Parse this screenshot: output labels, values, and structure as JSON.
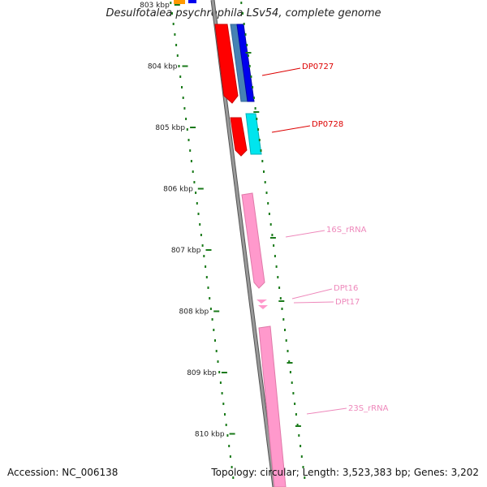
{
  "title": "Desulfotalea psychrophila LSv54, complete genome",
  "accession": "Accession: NC_006138",
  "topology": "Topology: circular; Length: 3,523,383 bp; Genes: 3,202",
  "kbp_ticks": [
    "803 kbp",
    "804 kbp",
    "805 kbp",
    "806 kbp",
    "807 kbp",
    "808 kbp",
    "809 kbp",
    "810 kbp"
  ],
  "gene_labels": [
    {
      "text": "DP0727",
      "color": "#dd0000"
    },
    {
      "text": "DP0728",
      "color": "#dd0000"
    },
    {
      "text": "16S_rRNA",
      "color": "#ee88bb"
    },
    {
      "text": "DPt16",
      "color": "#ee88bb"
    },
    {
      "text": "DPt17",
      "color": "#ee88bb"
    },
    {
      "text": "23S_rRNA",
      "color": "#ee88bb"
    }
  ],
  "colors": {
    "backbone": "#888888",
    "gc_ticks": "#1a7a1a",
    "cds_red": "#ff0000",
    "cds_blue": "#0000ee",
    "cds_steel": "#4682b4",
    "cds_cyan": "#00e5ee",
    "rrna_pink": "#ff99cc",
    "orange": "#ff9900"
  }
}
